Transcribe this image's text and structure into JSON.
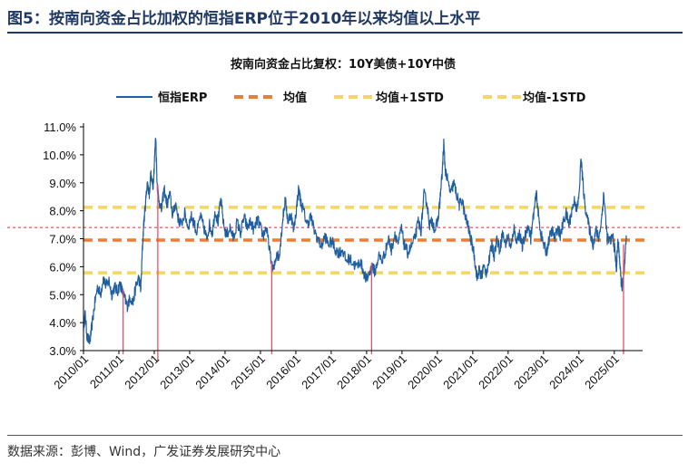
{
  "figure": {
    "title": "图5：按南向资金占比加权的恒指ERP位于2010年以来均值以上水平",
    "source": "数据来源：彭博、Wind，广发证券发展研究中心"
  },
  "chart_data": {
    "type": "line",
    "title": "按南向资金占比复权：10Y美债+10Y中债",
    "xlabel": "",
    "ylabel": "",
    "ylim": [
      3.0,
      11.0
    ],
    "yticks": [
      "3.0%",
      "4.0%",
      "5.0%",
      "6.0%",
      "7.0%",
      "8.0%",
      "9.0%",
      "10.0%",
      "11.0%"
    ],
    "xticks": [
      "2010/01",
      "2011/01",
      "2012/01",
      "2013/01",
      "2014/01",
      "2015/01",
      "2016/01",
      "2017/01",
      "2018/01",
      "2019/01",
      "2020/01",
      "2021/01",
      "2022/01",
      "2023/01",
      "2024/01",
      "2025/01"
    ],
    "xlim": [
      2010.0,
      2025.8
    ],
    "legend_position": "top",
    "series": [
      {
        "name": "恒指ERP",
        "color": "#1f5fa0",
        "style": "solid",
        "anchors": [
          [
            2010.0,
            3.9
          ],
          [
            2010.05,
            4.3
          ],
          [
            2010.1,
            3.5
          ],
          [
            2010.18,
            3.3
          ],
          [
            2010.25,
            4.0
          ],
          [
            2010.33,
            4.8
          ],
          [
            2010.4,
            5.3
          ],
          [
            2010.48,
            5.0
          ],
          [
            2010.56,
            5.6
          ],
          [
            2010.64,
            5.3
          ],
          [
            2010.72,
            5.5
          ],
          [
            2010.8,
            5.0
          ],
          [
            2010.88,
            5.3
          ],
          [
            2010.96,
            5.1
          ],
          [
            2011.03,
            5.4
          ],
          [
            2011.1,
            5.1
          ],
          [
            2011.18,
            4.8
          ],
          [
            2011.24,
            4.6
          ],
          [
            2011.32,
            4.9
          ],
          [
            2011.4,
            4.7
          ],
          [
            2011.48,
            5.3
          ],
          [
            2011.56,
            5.6
          ],
          [
            2011.62,
            5.2
          ],
          [
            2011.66,
            6.5
          ],
          [
            2011.7,
            7.5
          ],
          [
            2011.75,
            8.2
          ],
          [
            2011.8,
            9.0
          ],
          [
            2011.86,
            8.6
          ],
          [
            2011.9,
            9.3
          ],
          [
            2011.96,
            8.8
          ],
          [
            2012.0,
            9.6
          ],
          [
            2012.04,
            10.7
          ],
          [
            2012.08,
            9.0
          ],
          [
            2012.12,
            8.5
          ],
          [
            2012.2,
            8.0
          ],
          [
            2012.28,
            8.8
          ],
          [
            2012.36,
            8.2
          ],
          [
            2012.44,
            8.6
          ],
          [
            2012.52,
            7.8
          ],
          [
            2012.6,
            8.3
          ],
          [
            2012.68,
            7.7
          ],
          [
            2012.76,
            7.5
          ],
          [
            2012.86,
            7.9
          ],
          [
            2012.96,
            7.4
          ],
          [
            2013.04,
            7.8
          ],
          [
            2013.12,
            7.6
          ],
          [
            2013.2,
            7.2
          ],
          [
            2013.3,
            7.8
          ],
          [
            2013.4,
            7.4
          ],
          [
            2013.48,
            7.0
          ],
          [
            2013.56,
            7.5
          ],
          [
            2013.64,
            7.2
          ],
          [
            2013.72,
            8.0
          ],
          [
            2013.8,
            7.6
          ],
          [
            2013.88,
            8.4
          ],
          [
            2013.96,
            7.5
          ],
          [
            2014.04,
            7.1
          ],
          [
            2014.14,
            7.4
          ],
          [
            2014.24,
            7.0
          ],
          [
            2014.34,
            7.6
          ],
          [
            2014.44,
            7.2
          ],
          [
            2014.54,
            7.8
          ],
          [
            2014.62,
            7.4
          ],
          [
            2014.72,
            7.6
          ],
          [
            2014.82,
            7.3
          ],
          [
            2014.92,
            7.7
          ],
          [
            2015.0,
            7.4
          ],
          [
            2015.08,
            7.1
          ],
          [
            2015.16,
            7.4
          ],
          [
            2015.24,
            6.8
          ],
          [
            2015.32,
            6.0
          ],
          [
            2015.38,
            5.9
          ],
          [
            2015.46,
            6.5
          ],
          [
            2015.52,
            6.3
          ],
          [
            2015.58,
            7.0
          ],
          [
            2015.64,
            7.8
          ],
          [
            2015.7,
            8.4
          ],
          [
            2015.78,
            7.6
          ],
          [
            2015.86,
            7.9
          ],
          [
            2015.94,
            7.3
          ],
          [
            2016.02,
            8.1
          ],
          [
            2016.08,
            8.8
          ],
          [
            2016.14,
            8.3
          ],
          [
            2016.22,
            8.0
          ],
          [
            2016.32,
            7.5
          ],
          [
            2016.42,
            7.8
          ],
          [
            2016.52,
            7.3
          ],
          [
            2016.62,
            7.0
          ],
          [
            2016.72,
            6.7
          ],
          [
            2016.82,
            7.1
          ],
          [
            2016.92,
            6.8
          ],
          [
            2017.02,
            6.9
          ],
          [
            2017.12,
            6.6
          ],
          [
            2017.22,
            6.5
          ],
          [
            2017.32,
            6.6
          ],
          [
            2017.42,
            6.2
          ],
          [
            2017.52,
            6.3
          ],
          [
            2017.62,
            6.1
          ],
          [
            2017.72,
            6.0
          ],
          [
            2017.82,
            6.2
          ],
          [
            2017.92,
            5.8
          ],
          [
            2018.0,
            5.5
          ],
          [
            2018.08,
            5.8
          ],
          [
            2018.16,
            6.0
          ],
          [
            2018.24,
            5.8
          ],
          [
            2018.34,
            6.4
          ],
          [
            2018.44,
            6.2
          ],
          [
            2018.54,
            6.6
          ],
          [
            2018.62,
            7.0
          ],
          [
            2018.7,
            6.6
          ],
          [
            2018.8,
            7.2
          ],
          [
            2018.9,
            6.8
          ],
          [
            2018.98,
            7.4
          ],
          [
            2019.06,
            6.8
          ],
          [
            2019.16,
            6.5
          ],
          [
            2019.26,
            6.7
          ],
          [
            2019.36,
            7.0
          ],
          [
            2019.46,
            7.6
          ],
          [
            2019.54,
            7.3
          ],
          [
            2019.62,
            8.6
          ],
          [
            2019.7,
            8.3
          ],
          [
            2019.78,
            7.5
          ],
          [
            2019.86,
            7.6
          ],
          [
            2019.94,
            7.3
          ],
          [
            2020.02,
            7.7
          ],
          [
            2020.08,
            8.5
          ],
          [
            2020.14,
            9.4
          ],
          [
            2020.18,
            10.4
          ],
          [
            2020.22,
            9.5
          ],
          [
            2020.3,
            9.0
          ],
          [
            2020.38,
            8.6
          ],
          [
            2020.46,
            9.0
          ],
          [
            2020.54,
            8.6
          ],
          [
            2020.62,
            8.2
          ],
          [
            2020.7,
            8.4
          ],
          [
            2020.78,
            7.8
          ],
          [
            2020.86,
            7.5
          ],
          [
            2020.94,
            7.0
          ],
          [
            2021.02,
            6.6
          ],
          [
            2021.08,
            6.0
          ],
          [
            2021.12,
            5.6
          ],
          [
            2021.18,
            5.9
          ],
          [
            2021.24,
            5.6
          ],
          [
            2021.3,
            6.0
          ],
          [
            2021.38,
            5.8
          ],
          [
            2021.46,
            6.2
          ],
          [
            2021.54,
            6.8
          ],
          [
            2021.6,
            6.4
          ],
          [
            2021.68,
            7.0
          ],
          [
            2021.76,
            6.6
          ],
          [
            2021.84,
            7.2
          ],
          [
            2021.92,
            6.8
          ],
          [
            2022.0,
            7.1
          ],
          [
            2022.08,
            6.6
          ],
          [
            2022.16,
            7.4
          ],
          [
            2022.24,
            6.9
          ],
          [
            2022.32,
            7.2
          ],
          [
            2022.4,
            6.7
          ],
          [
            2022.48,
            7.1
          ],
          [
            2022.56,
            7.5
          ],
          [
            2022.64,
            7.0
          ],
          [
            2022.72,
            7.9
          ],
          [
            2022.8,
            8.6
          ],
          [
            2022.86,
            7.8
          ],
          [
            2022.92,
            7.2
          ],
          [
            2023.0,
            6.8
          ],
          [
            2023.08,
            6.5
          ],
          [
            2023.16,
            7.0
          ],
          [
            2023.24,
            7.3
          ],
          [
            2023.32,
            7.0
          ],
          [
            2023.4,
            7.4
          ],
          [
            2023.48,
            7.1
          ],
          [
            2023.56,
            7.6
          ],
          [
            2023.64,
            7.9
          ],
          [
            2023.72,
            7.5
          ],
          [
            2023.8,
            8.0
          ],
          [
            2023.88,
            8.4
          ],
          [
            2023.94,
            8.0
          ],
          [
            2024.0,
            8.5
          ],
          [
            2024.06,
            9.9
          ],
          [
            2024.1,
            9.2
          ],
          [
            2024.16,
            8.3
          ],
          [
            2024.24,
            7.7
          ],
          [
            2024.32,
            7.2
          ],
          [
            2024.4,
            6.8
          ],
          [
            2024.48,
            7.3
          ],
          [
            2024.56,
            7.0
          ],
          [
            2024.64,
            7.7
          ],
          [
            2024.7,
            8.6
          ],
          [
            2024.74,
            8.0
          ],
          [
            2024.8,
            7.0
          ],
          [
            2024.88,
            6.9
          ],
          [
            2024.96,
            7.1
          ],
          [
            2025.02,
            6.5
          ],
          [
            2025.06,
            5.9
          ],
          [
            2025.1,
            6.9
          ],
          [
            2025.14,
            6.5
          ],
          [
            2025.18,
            5.6
          ],
          [
            2025.22,
            5.3
          ],
          [
            2025.26,
            5.5
          ],
          [
            2025.3,
            6.2
          ],
          [
            2025.34,
            7.0
          ]
        ]
      },
      {
        "name": "均值",
        "color": "#ed7d31",
        "style": "dashed",
        "value": 6.95
      },
      {
        "name": "均值+1STD",
        "color": "#f5d563",
        "style": "dashed",
        "value": 8.12
      },
      {
        "name": "均值-1STD",
        "color": "#f5d563",
        "style": "dashed",
        "value": 5.78
      }
    ],
    "reference_line": {
      "value": 7.4,
      "color": "#e8505f",
      "style": "dotted"
    },
    "markers": {
      "color": "#e8506a",
      "x": [
        2011.12,
        2012.1,
        2015.32,
        2018.14,
        2025.26
      ]
    },
    "legend_text_color": "#111111",
    "axis_color": "#000000"
  }
}
